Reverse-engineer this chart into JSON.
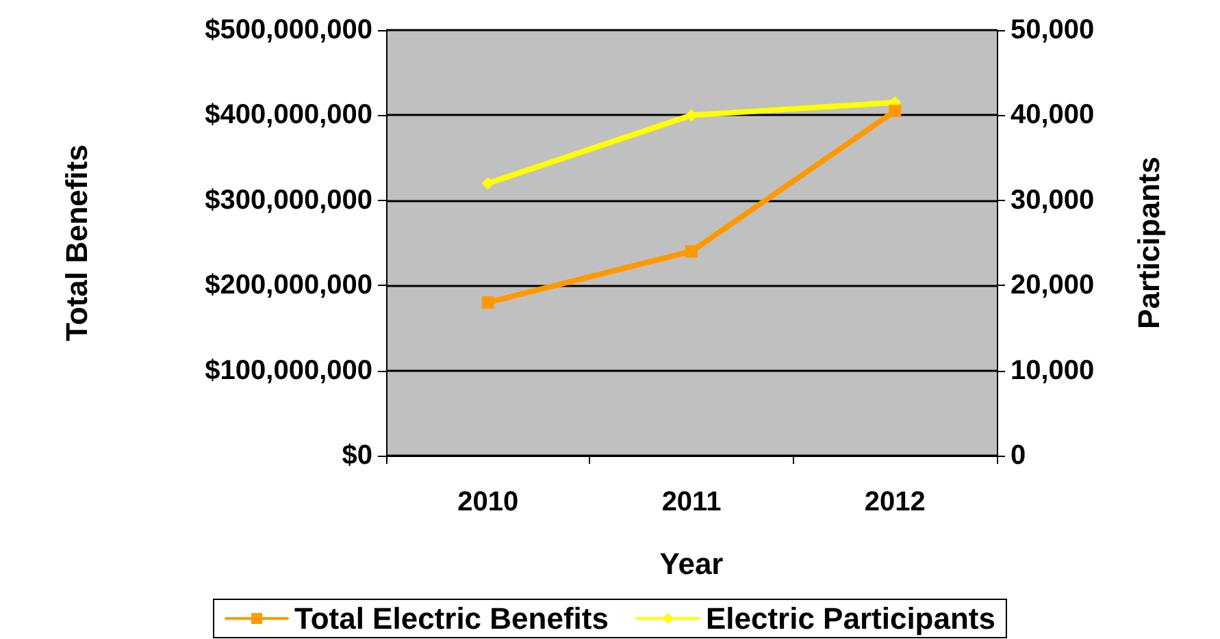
{
  "chart_data": {
    "type": "line",
    "xlabel": "Year",
    "ylabel": "Total Benefits",
    "y2label": "Participants",
    "categories": [
      "2010",
      "2011",
      "2012"
    ],
    "series": [
      {
        "name": "Total Electric Benefits",
        "color": "#ff9900",
        "marker": "square",
        "values": [
          180000000,
          240000000,
          405000000
        ]
      },
      {
        "name": "Electric Participants",
        "color": "#ffff00",
        "marker": "diamond",
        "axis": "y2",
        "values": [
          32000,
          40000,
          41500
        ]
      }
    ],
    "ylim": [
      0,
      500000000
    ],
    "yticks": [
      {
        "value": 0,
        "label": "$0"
      },
      {
        "value": 100000000,
        "label": "$100,000,000"
      },
      {
        "value": 200000000,
        "label": "$200,000,000"
      },
      {
        "value": 300000000,
        "label": "$300,000,000"
      },
      {
        "value": 400000000,
        "label": "$400,000,000"
      },
      {
        "value": 500000000,
        "label": "$500,000,000"
      }
    ],
    "y2lim": [
      0,
      50000
    ],
    "y2ticks": [
      {
        "value": 0,
        "label": "0"
      },
      {
        "value": 10000,
        "label": "10,000"
      },
      {
        "value": 20000,
        "label": "20,000"
      },
      {
        "value": 30000,
        "label": "30,000"
      },
      {
        "value": 40000,
        "label": "40,000"
      },
      {
        "value": 50000,
        "label": "50,000"
      }
    ],
    "grid": "y",
    "legend": "bottom",
    "line_style": "solid"
  }
}
